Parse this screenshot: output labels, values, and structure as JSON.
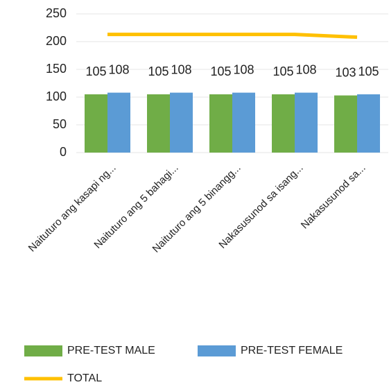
{
  "chart_data": {
    "type": "bar",
    "categories": [
      "Naituturo ang kasapi ng...",
      "Naituturo ang 5 bahagi...",
      "Naituturo ang 5 binangg...",
      "Nakasusunod sa isang...",
      "Nakasusunod sa..."
    ],
    "series": [
      {
        "name": "PRE-TEST MALE",
        "color": "#70ad47",
        "values": [
          105,
          105,
          105,
          105,
          103
        ]
      },
      {
        "name": "PRE-TEST FEMALE",
        "color": "#5b9bd5",
        "values": [
          108,
          108,
          108,
          108,
          105
        ]
      },
      {
        "name": "TOTAL",
        "color": "#ffc000",
        "type": "line",
        "values": [
          213,
          213,
          213,
          213,
          208
        ]
      }
    ],
    "ylim": [
      0,
      250
    ],
    "yticks": [
      0,
      50,
      100,
      150,
      200,
      250
    ],
    "grid": true,
    "legend": "bottom"
  }
}
